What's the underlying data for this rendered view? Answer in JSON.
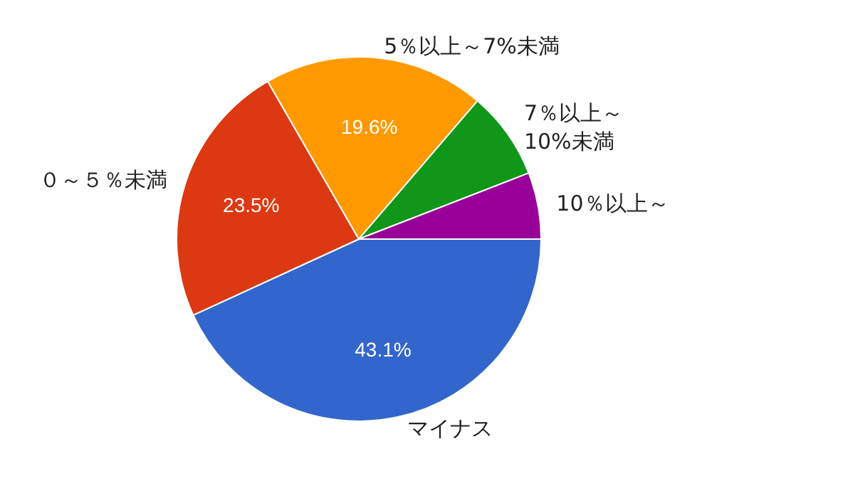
{
  "chart_data": {
    "type": "pie",
    "categories": [
      "マイナス",
      "０～５％未満",
      "5％以上～7%未満",
      "7％以上～10%未満",
      "10％以上～"
    ],
    "values": [
      43.1,
      23.5,
      19.6,
      7.8,
      5.9
    ],
    "colors": [
      "#3366cc",
      "#dc3912",
      "#ff9900",
      "#109618",
      "#990099"
    ],
    "value_labels": [
      "43.1%",
      "23.5%",
      "19.6%",
      null,
      null
    ],
    "legend": false
  }
}
